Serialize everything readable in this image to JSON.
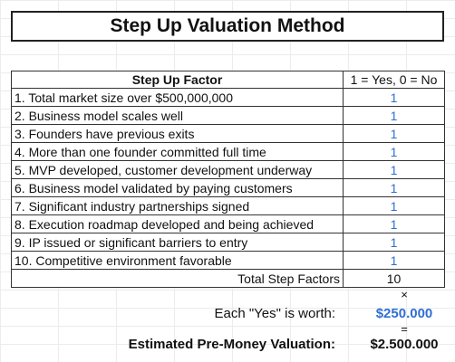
{
  "title": "Step Up Valuation Method",
  "table": {
    "header": [
      "Step Up Factor",
      "1 = Yes, 0 = No"
    ],
    "rows": [
      {
        "factor": "1. Total market size over $500,000,000",
        "value": "1"
      },
      {
        "factor": "2. Business model scales well",
        "value": "1"
      },
      {
        "factor": "3. Founders have previous exits",
        "value": "1"
      },
      {
        "factor": "4. More than one founder committed full time",
        "value": "1"
      },
      {
        "factor": "5. MVP developed, customer development underway",
        "value": "1"
      },
      {
        "factor": "6. Business model validated by paying customers",
        "value": "1"
      },
      {
        "factor": "7. Significant industry partnerships signed",
        "value": "1"
      },
      {
        "factor": "8. Execution roadmap developed and being achieved",
        "value": "1"
      },
      {
        "factor": "9. IP issued or significant barriers to entry",
        "value": "1"
      },
      {
        "factor": "10. Competitive environment favorable",
        "value": "1"
      }
    ],
    "total": {
      "label": "Total Step Factors",
      "value": "10"
    }
  },
  "multiply_symbol": "×",
  "equals_symbol": "=",
  "worth": {
    "label": "Each \"Yes\" is worth:",
    "value": "$250.000"
  },
  "estimate": {
    "label": "Estimated Pre-Money Valuation:",
    "value": "$2.500.000"
  },
  "colors": {
    "accent_blue": "#2f6fd1"
  }
}
